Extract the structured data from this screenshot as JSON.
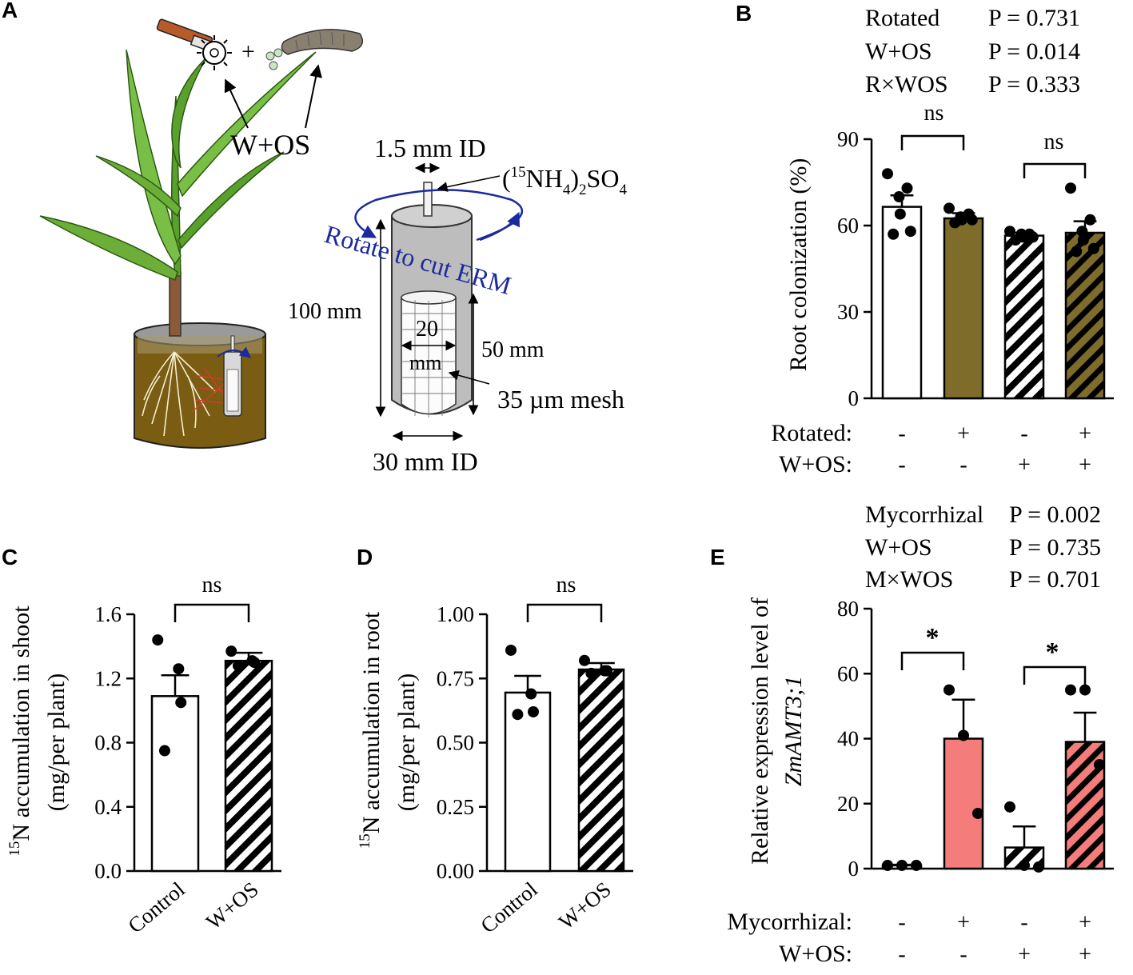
{
  "panels": {
    "A": {
      "letter": "A",
      "labels": {
        "w_os": "W+OS",
        "tube_id": "1.5 mm ID",
        "isotope_paren_open": "(",
        "isotope_sup": "15",
        "isotope_nh": "NH",
        "isotope_sub4": "4",
        "isotope_close": ")",
        "isotope_sub2": "2",
        "isotope_so": "SO",
        "isotope_sub4b": "4",
        "rotate": "Rotate to cut ERM",
        "height_100": "100 mm",
        "height_50": "50 mm",
        "inner_20": "20",
        "inner_mm": "mm",
        "mesh": "35 µm mesh",
        "outer_id": "30 mm ID",
        "plus": "+"
      }
    },
    "B": {
      "letter": "B",
      "stats": [
        {
          "name": "Rotated",
          "p": "P = 0.731"
        },
        {
          "name": "W+OS",
          "p": "P = 0.014"
        },
        {
          "name": "R×WOS",
          "p": "P = 0.333"
        }
      ],
      "sig": [
        "ns",
        "ns"
      ],
      "factor_labels": [
        "Rotated:",
        "W+OS:"
      ],
      "factor_rows": [
        [
          "-",
          "+",
          "-",
          "+"
        ],
        [
          "-",
          "-",
          "+",
          "+"
        ]
      ]
    },
    "C": {
      "letter": "C",
      "sig": "ns",
      "ylabel_sup": "15",
      "ylabel_main": "N accumulation in shoot",
      "ylabel_unit": "(mg/per plant)"
    },
    "D": {
      "letter": "D",
      "sig": "ns",
      "ylabel_sup": "15",
      "ylabel_main": "N accumulation in root",
      "ylabel_unit": "(mg/per plant)"
    },
    "E": {
      "letter": "E",
      "stats": [
        {
          "name": "Mycorrhizal",
          "p": "P = 0.002"
        },
        {
          "name": "W+OS",
          "p": "P = 0.735"
        },
        {
          "name": "M×WOS",
          "p": "P = 0.701"
        }
      ],
      "sig": [
        "*",
        "*"
      ],
      "ylabel_line1": "Relative expression level of",
      "ylabel_line2": "ZmAMT3;1",
      "factor_labels": [
        "Mycorrhizal:",
        "W+OS:"
      ],
      "factor_rows": [
        [
          "-",
          "+",
          "-",
          "+"
        ],
        [
          "-",
          "-",
          "+",
          "+"
        ]
      ]
    }
  },
  "colors": {
    "olive": "#7d6c2a",
    "salmon": "#f47c7a",
    "blue_arrow": "#1c2a9e",
    "cylinder_gray": "#bdbdbd",
    "soil": "#7a5d12"
  },
  "chart_data": [
    {
      "id": "B",
      "type": "bar",
      "ylabel": "Root colonization (%)",
      "ylim": [
        0,
        90
      ],
      "yticks": [
        0,
        30,
        60,
        90
      ],
      "yticklabels": [
        "0",
        "30",
        "60",
        "90"
      ],
      "categories": [
        "Rotated- W+OS-",
        "Rotated+ W+OS-",
        "Rotated- W+OS+",
        "Rotated+ W+OS+"
      ],
      "values": [
        66.5,
        62.5,
        56.5,
        57.5
      ],
      "errors": [
        4.0,
        1.8,
        1.0,
        4.0
      ],
      "fills": [
        "white",
        "olive",
        "hatch",
        "hatch-olive"
      ],
      "points": [
        [
          78,
          73,
          70,
          64,
          58,
          57
        ],
        [
          66,
          64,
          63,
          62,
          62,
          61
        ],
        [
          58,
          57,
          57,
          56,
          56,
          55
        ],
        [
          73,
          62,
          58,
          55,
          52,
          51
        ]
      ]
    },
    {
      "id": "C",
      "type": "bar",
      "ylabel": "15N accumulation in shoot (mg/per plant)",
      "ylim": [
        0,
        1.6
      ],
      "yticks": [
        0,
        0.4,
        0.8,
        1.2,
        1.6
      ],
      "yticklabels": [
        "0.0",
        "0.4",
        "0.8",
        "1.2",
        "1.6"
      ],
      "categories": [
        "Control",
        "W+OS"
      ],
      "values": [
        1.09,
        1.31
      ],
      "errors": [
        0.13,
        0.05
      ],
      "fills": [
        "white",
        "hatch"
      ],
      "points": [
        [
          1.44,
          1.26,
          1.05,
          0.75
        ],
        [
          1.37,
          1.31,
          1.3,
          1.28
        ]
      ]
    },
    {
      "id": "D",
      "type": "bar",
      "ylabel": "15N accumulation in root (mg/per plant)",
      "ylim": [
        0,
        1.0
      ],
      "yticks": [
        0,
        0.25,
        0.5,
        0.75,
        1.0
      ],
      "yticklabels": [
        "0.00",
        "0.25",
        "0.50",
        "0.75",
        "1.00"
      ],
      "categories": [
        "Control",
        "W+OS"
      ],
      "values": [
        0.695,
        0.785
      ],
      "errors": [
        0.065,
        0.025
      ],
      "fills": [
        "white",
        "hatch"
      ],
      "points": [
        [
          0.86,
          0.69,
          0.62,
          0.61
        ],
        [
          0.82,
          0.78,
          0.78,
          0.77
        ]
      ]
    },
    {
      "id": "E",
      "type": "bar",
      "ylabel": "Relative expression level of ZmAMT3;1",
      "ylim": [
        0,
        80
      ],
      "yticks": [
        0,
        20,
        40,
        60,
        80
      ],
      "yticklabels": [
        "0",
        "20",
        "40",
        "60",
        "80"
      ],
      "categories": [
        "Myc- W+OS-",
        "Myc+ W+OS-",
        "Myc- W+OS+",
        "Myc+ W+OS+"
      ],
      "values": [
        1,
        40,
        6.5,
        39
      ],
      "errors": [
        0.2,
        12,
        6.5,
        9
      ],
      "fills": [
        "white",
        "salmon",
        "hatch",
        "hatch-salmon"
      ],
      "points": [
        [
          1,
          1,
          1
        ],
        [
          55,
          41,
          17
        ],
        [
          19,
          1,
          0.5
        ],
        [
          55,
          55,
          32
        ]
      ]
    }
  ]
}
